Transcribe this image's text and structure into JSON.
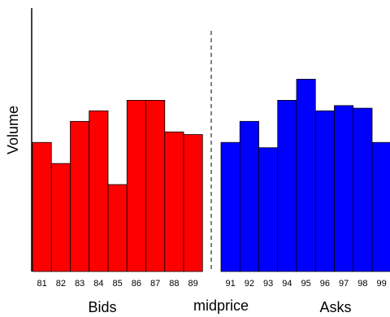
{
  "chart_data": {
    "type": "bar",
    "ylabel": "Volume",
    "xlabel": "",
    "title": "",
    "ylim": [
      0,
      100
    ],
    "grid": false,
    "divider_label": "midprice",
    "series": [
      {
        "name": "Bids",
        "color": "#ff0000",
        "categories": [
          "81",
          "82",
          "83",
          "84",
          "85",
          "86",
          "87",
          "88",
          "89"
        ],
        "values": [
          49,
          41,
          57,
          61,
          33,
          65,
          65,
          53,
          52
        ]
      },
      {
        "name": "Asks",
        "color": "#0000ff",
        "categories": [
          "91",
          "92",
          "93",
          "94",
          "95",
          "96",
          "97",
          "98",
          "99"
        ],
        "values": [
          49,
          57,
          47,
          65,
          73,
          61,
          63,
          62,
          49
        ]
      }
    ]
  }
}
